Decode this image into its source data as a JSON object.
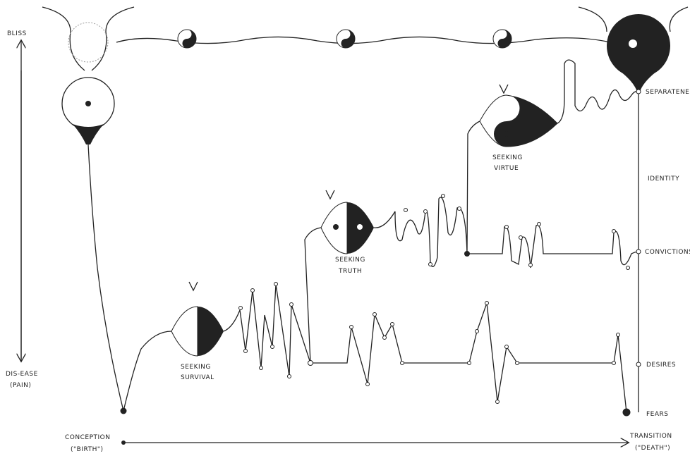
{
  "axis": {
    "top": "BLISS",
    "bottom": [
      "DIS-EASE",
      "(PAIN)"
    ],
    "start": [
      "CONCEPTION",
      "(\"BIRTH\")"
    ],
    "end": [
      "TRANSITION",
      "(\"DEATH\")"
    ]
  },
  "levels": [
    "SEPARATENESS",
    "IDENTITY",
    "CONVICTIONS",
    "DESIRES",
    "FEARS"
  ],
  "stages": [
    [
      "SEEKING",
      "SURVIVAL"
    ],
    [
      "SEEKING",
      "TRUTH"
    ],
    [
      "SEEKING",
      "VIRTUE"
    ]
  ]
}
